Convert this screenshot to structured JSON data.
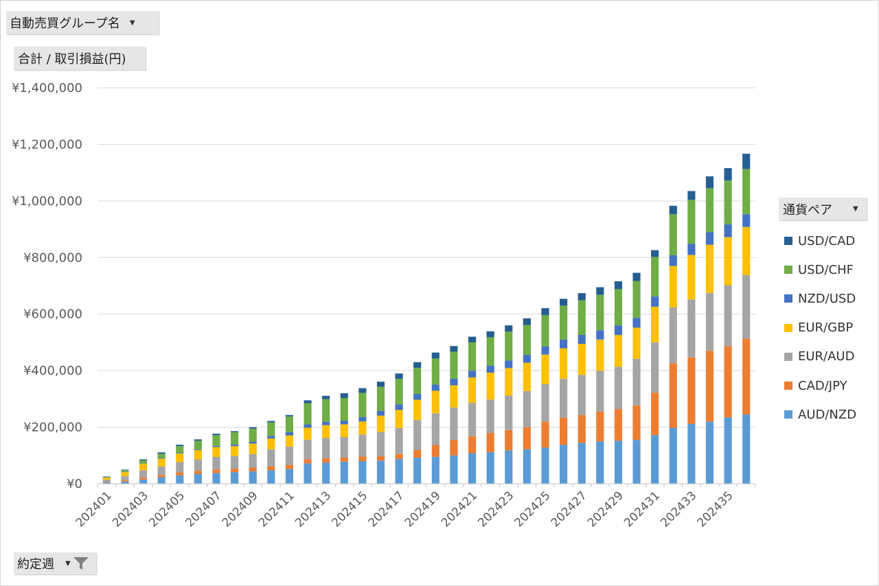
{
  "filters": {
    "group_label": "自動売買グループ名",
    "value_label": "合計 / 取引損益(円)",
    "legend_label": "通貨ペア",
    "date_label": "約定週"
  },
  "icons": {
    "dropdown": "chevron-down-icon",
    "filter": "filter-icon"
  },
  "chart_data": {
    "type": "bar",
    "stacked": true,
    "title": "",
    "xlabel": "",
    "ylabel": "",
    "ylim": [
      0,
      1400000
    ],
    "yticks": [
      "¥0",
      "¥200,000",
      "¥400,000",
      "¥600,000",
      "¥800,000",
      "¥1,000,000",
      "¥1,200,000",
      "¥1,400,000"
    ],
    "categories": [
      "202401",
      "202402",
      "202403",
      "202404",
      "202405",
      "202406",
      "202407",
      "202408",
      "202409",
      "202410",
      "202411",
      "202412",
      "202413",
      "202414",
      "202415",
      "202416",
      "202417",
      "202418",
      "202419",
      "202420",
      "202421",
      "202422",
      "202423",
      "202424",
      "202425",
      "202426",
      "202427",
      "202428",
      "202429",
      "202430",
      "202431",
      "202432",
      "202433",
      "202434",
      "202435",
      "202436"
    ],
    "x_tick_labels": [
      "202401",
      "202403",
      "202405",
      "202407",
      "202409",
      "202411",
      "202413",
      "202415",
      "202417",
      "202419",
      "202421",
      "202423",
      "202425",
      "202427",
      "202429",
      "202431",
      "202433",
      "202435"
    ],
    "series": [
      {
        "name": "AUD/NZD",
        "color": "#5b9bd5",
        "values": [
          5000,
          8000,
          15000,
          23000,
          30000,
          35000,
          38000,
          41000,
          44000,
          48000,
          52000,
          72000,
          75000,
          78000,
          80000,
          82000,
          88000,
          92000,
          95000,
          100000,
          108000,
          112000,
          118000,
          122000,
          128000,
          138000,
          145000,
          150000,
          152000,
          155000,
          172000,
          198000,
          212000,
          220000,
          235000,
          245000
        ]
      },
      {
        "name": "CAD/JPY",
        "color": "#ed7d31",
        "values": [
          2000,
          5000,
          7000,
          8000,
          10000,
          11000,
          12000,
          12000,
          13000,
          14000,
          15000,
          14000,
          15000,
          15000,
          16000,
          16000,
          17000,
          28000,
          42000,
          55000,
          60000,
          68000,
          72000,
          78000,
          92000,
          95000,
          98000,
          105000,
          112000,
          122000,
          150000,
          228000,
          235000,
          250000,
          252000,
          268000
        ]
      },
      {
        "name": "EUR/AUD",
        "color": "#a5a5a5",
        "values": [
          8000,
          14000,
          26000,
          30000,
          37000,
          40000,
          45000,
          45000,
          48000,
          60000,
          64000,
          70000,
          72000,
          72000,
          78000,
          85000,
          92000,
          105000,
          112000,
          115000,
          118000,
          118000,
          122000,
          128000,
          132000,
          138000,
          142000,
          145000,
          150000,
          165000,
          178000,
          198000,
          205000,
          205000,
          215000,
          225000
        ]
      },
      {
        "name": "EUR/GBP",
        "color": "#ffc000",
        "values": [
          7000,
          14000,
          22000,
          28000,
          30000,
          33000,
          35000,
          35000,
          37000,
          38000,
          40000,
          42000,
          45000,
          45000,
          46000,
          58000,
          64000,
          72000,
          80000,
          78000,
          90000,
          95000,
          97000,
          100000,
          105000,
          108000,
          110000,
          110000,
          112000,
          110000,
          126000,
          146000,
          157000,
          170000,
          170000,
          170000
        ]
      },
      {
        "name": "NZD/USD",
        "color": "#4472c4",
        "values": [
          1000,
          1000,
          1000,
          2000,
          2000,
          3000,
          4000,
          6000,
          7000,
          9000,
          11000,
          12000,
          12000,
          13000,
          16000,
          17000,
          20000,
          21000,
          22000,
          24000,
          24000,
          25000,
          27000,
          28000,
          29000,
          31000,
          32000,
          33000,
          34000,
          35000,
          36000,
          38000,
          40000,
          45000,
          45000,
          45000
        ]
      },
      {
        "name": "USD/CHF",
        "color": "#70ad47",
        "values": [
          2000,
          6000,
          11000,
          15000,
          24000,
          30000,
          38000,
          43000,
          46000,
          48000,
          56000,
          75000,
          80000,
          80000,
          85000,
          85000,
          90000,
          92000,
          92000,
          95000,
          100000,
          100000,
          102000,
          105000,
          110000,
          120000,
          122000,
          125000,
          128000,
          130000,
          140000,
          145000,
          155000,
          155000,
          155000,
          160000
        ]
      },
      {
        "name": "USD/CAD",
        "color": "#255e91",
        "values": [
          1000,
          2000,
          4000,
          5000,
          5000,
          5000,
          5000,
          4000,
          5000,
          5000,
          5000,
          10000,
          12000,
          17000,
          17000,
          18000,
          19000,
          20000,
          21000,
          20000,
          20000,
          21000,
          22000,
          24000,
          25000,
          24000,
          25000,
          27000,
          28000,
          29000,
          24000,
          30000,
          31000,
          42000,
          44000,
          54000
        ]
      }
    ]
  }
}
